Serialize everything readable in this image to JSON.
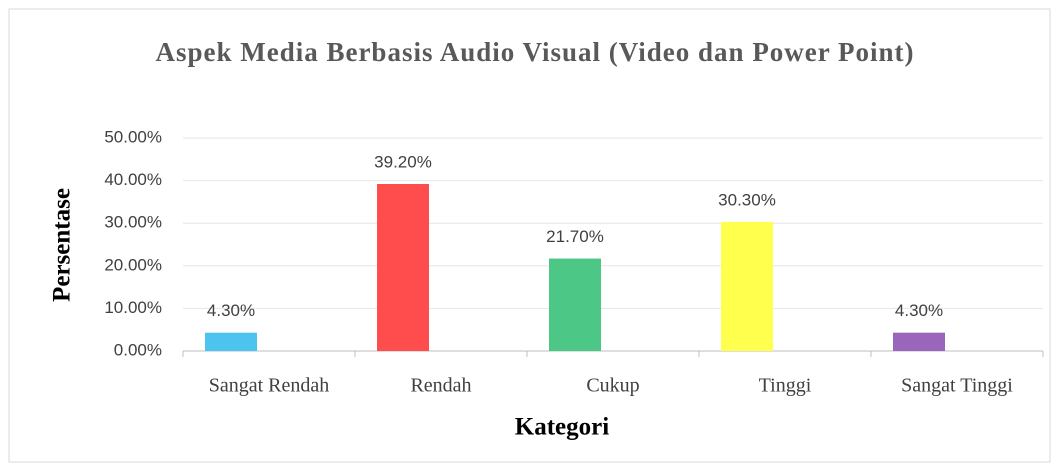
{
  "chart_data": {
    "type": "bar",
    "title": "Aspek  Media Berbasis Audio Visual (Video dan Power Point)",
    "x_label": "Kategori",
    "y_label": "Persentase",
    "categories": [
      "Sangat Rendah",
      "Rendah",
      "Cukup",
      "Tinggi",
      "Sangat Tinggi"
    ],
    "values": [
      4.3,
      39.2,
      21.7,
      30.3,
      4.3
    ],
    "value_labels": [
      "4.30%",
      "39.20%",
      "21.70%",
      "30.30%",
      "4.30%"
    ],
    "colors": [
      "#4dc3f0",
      "#ff4d4d",
      "#4dc785",
      "#ffff4d",
      "#9966bb"
    ],
    "ylim": [
      0,
      50
    ],
    "yticks": [
      {
        "value": 0,
        "label": "0.00%"
      },
      {
        "value": 10,
        "label": "10.00%"
      },
      {
        "value": 20,
        "label": "20.00%"
      },
      {
        "value": 30,
        "label": "30.00%"
      },
      {
        "value": 40,
        "label": "40.00%"
      },
      {
        "value": 50,
        "label": "50.00%"
      }
    ],
    "grid": true
  }
}
